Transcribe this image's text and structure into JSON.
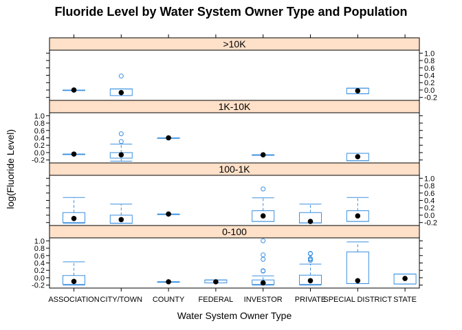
{
  "chart_data": {
    "type": "box",
    "title": "Fluoride Level by Water System Owner Type and Population",
    "xlabel": "Water System Owner Type",
    "ylabel": "log(Fluoride Level)",
    "categories": [
      "ASSOCIATION",
      "CITY/TOWN",
      "COUNTY",
      "FEDERAL",
      "INVESTOR",
      "PRIVATE",
      "SPECIAL DISTRICT",
      "STATE"
    ],
    "y_ticks": [
      -0.2,
      0.0,
      0.2,
      0.4,
      0.6,
      0.8,
      1.0
    ],
    "y_tick_labels": [
      "-0.2",
      "0.0",
      "0.2",
      "0.4",
      "0.6",
      "0.8",
      "1.0"
    ],
    "ylim": [
      -0.28,
      1.08
    ],
    "colors": {
      "box": "#3a8fe0",
      "median": "#000000",
      "strip": "#ffe0c8",
      "outline": "#000000"
    },
    "panels": [
      {
        "label": ">10K",
        "boxes": [
          {
            "category": "ASSOCIATION",
            "min": 0.0,
            "q1": 0.0,
            "median": 0.0,
            "q3": 0.0,
            "max": 0.0,
            "outliers": []
          },
          {
            "category": "CITY/TOWN",
            "min": -0.15,
            "q1": -0.15,
            "median": -0.07,
            "q3": 0.03,
            "max": 0.03,
            "outliers": [
              0.38
            ]
          },
          {
            "category": "SPECIAL DISTRICT",
            "min": -0.1,
            "q1": -0.1,
            "median": -0.02,
            "q3": 0.05,
            "max": 0.05,
            "outliers": []
          }
        ]
      },
      {
        "label": "1K-10K",
        "boxes": [
          {
            "category": "ASSOCIATION",
            "min": -0.04,
            "q1": -0.04,
            "median": -0.04,
            "q3": -0.04,
            "max": -0.04,
            "outliers": []
          },
          {
            "category": "CITY/TOWN",
            "min": -0.23,
            "q1": -0.15,
            "median": -0.06,
            "q3": 0.0,
            "max": 0.23,
            "outliers": [
              0.3,
              0.51
            ]
          },
          {
            "category": "COUNTY",
            "min": 0.4,
            "q1": 0.4,
            "median": 0.4,
            "q3": 0.4,
            "max": 0.4,
            "outliers": []
          },
          {
            "category": "INVESTOR",
            "min": -0.06,
            "q1": -0.06,
            "median": -0.06,
            "q3": -0.06,
            "max": -0.06,
            "outliers": []
          },
          {
            "category": "SPECIAL DISTRICT",
            "min": -0.22,
            "q1": -0.22,
            "median": -0.11,
            "q3": -0.02,
            "max": -0.02,
            "outliers": []
          }
        ]
      },
      {
        "label": "100-1K",
        "boxes": [
          {
            "category": "ASSOCIATION",
            "min": -0.22,
            "q1": -0.2,
            "median": -0.09,
            "q3": 0.07,
            "max": 0.48,
            "outliers": []
          },
          {
            "category": "CITY/TOWN",
            "min": -0.22,
            "q1": -0.22,
            "median": -0.12,
            "q3": 0.0,
            "max": 0.3,
            "outliers": []
          },
          {
            "category": "COUNTY",
            "min": 0.03,
            "q1": 0.03,
            "median": 0.03,
            "q3": 0.03,
            "max": 0.03,
            "outliers": []
          },
          {
            "category": "INVESTOR",
            "min": -0.17,
            "q1": -0.17,
            "median": -0.02,
            "q3": 0.12,
            "max": 0.47,
            "outliers": [
              0.71
            ]
          },
          {
            "category": "PRIVATE",
            "min": -0.21,
            "q1": -0.21,
            "median": -0.17,
            "q3": 0.07,
            "max": 0.3,
            "outliers": []
          },
          {
            "category": "SPECIAL DISTRICT",
            "min": -0.17,
            "q1": -0.17,
            "median": -0.02,
            "q3": 0.12,
            "max": 0.48,
            "outliers": []
          }
        ]
      },
      {
        "label": "0-100",
        "boxes": [
          {
            "category": "ASSOCIATION",
            "min": -0.2,
            "q1": -0.18,
            "median": -0.1,
            "q3": 0.06,
            "max": 0.43,
            "outliers": []
          },
          {
            "category": "COUNTY",
            "min": -0.11,
            "q1": -0.11,
            "median": -0.11,
            "q3": -0.11,
            "max": -0.11,
            "outliers": []
          },
          {
            "category": "FEDERAL",
            "min": -0.14,
            "q1": -0.14,
            "median": -0.11,
            "q3": -0.06,
            "max": -0.06,
            "outliers": []
          },
          {
            "category": "INVESTOR",
            "min": -0.2,
            "q1": -0.18,
            "median": -0.14,
            "q3": -0.06,
            "max": 0.05,
            "outliers": [
              0.18,
              0.19,
              0.5,
              0.62,
              1.0
            ]
          },
          {
            "category": "PRIVATE",
            "min": -0.2,
            "q1": -0.18,
            "median": -0.08,
            "q3": 0.07,
            "max": 0.37,
            "outliers": [
              0.47,
              0.5,
              0.52,
              0.65,
              0.66
            ]
          },
          {
            "category": "SPECIAL DISTRICT",
            "min": -0.16,
            "q1": -0.16,
            "median": -0.08,
            "q3": 0.7,
            "max": 0.97,
            "outliers": []
          },
          {
            "category": "STATE",
            "min": -0.17,
            "q1": -0.17,
            "median": -0.02,
            "q3": 0.1,
            "max": 0.1,
            "outliers": []
          }
        ]
      }
    ]
  }
}
